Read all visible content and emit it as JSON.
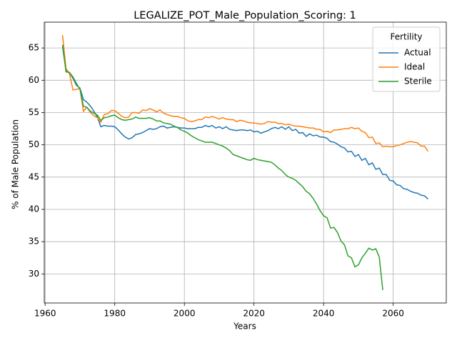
{
  "chart_data": {
    "type": "line",
    "title": "LEGALIZE_POT_Male_Population_Scoring: 1",
    "x_label": "Years",
    "y_label": "% of Male Population",
    "legend_title": "Fertility",
    "legend": "upper right",
    "grid": true,
    "xlim": [
      1959.75,
      2075.25
    ],
    "xticks": [
      1960,
      1980,
      2000,
      2020,
      2040,
      2060
    ],
    "ylim": [
      25.5,
      69
    ],
    "yticks": [
      30,
      35,
      40,
      45,
      50,
      55,
      60,
      65
    ],
    "x": [
      1965,
      1966,
      1967,
      1968,
      1969,
      1970,
      1971,
      1972,
      1973,
      1974,
      1975,
      1976,
      1977,
      1978,
      1979,
      1980,
      1981,
      1982,
      1983,
      1984,
      1985,
      1986,
      1987,
      1988,
      1989,
      1990,
      1991,
      1992,
      1993,
      1994,
      1995,
      1996,
      1997,
      1998,
      1999,
      2000,
      2001,
      2002,
      2003,
      2004,
      2005,
      2006,
      2007,
      2008,
      2009,
      2010,
      2011,
      2012,
      2013,
      2014,
      2015,
      2016,
      2017,
      2018,
      2019,
      2020,
      2021,
      2022,
      2023,
      2024,
      2025,
      2026,
      2027,
      2028,
      2029,
      2030,
      2031,
      2032,
      2033,
      2034,
      2035,
      2036,
      2037,
      2038,
      2039,
      2040,
      2041,
      2042,
      2043,
      2044,
      2045,
      2046,
      2047,
      2048,
      2049,
      2050,
      2051,
      2052,
      2053,
      2054,
      2055,
      2056,
      2057,
      2058,
      2059,
      2060,
      2061,
      2062,
      2063,
      2064,
      2065,
      2066,
      2067,
      2068,
      2069,
      2070
    ],
    "series": [
      {
        "name": "Actual",
        "color": "#1f77b4",
        "values": [
          65.2,
          61.5,
          61.2,
          60.3,
          59.2,
          58.8,
          57.0,
          56.6,
          56.0,
          55.2,
          54.3,
          52.8,
          53.0,
          52.9,
          52.9,
          52.8,
          52.3,
          51.7,
          51.2,
          50.9,
          51.1,
          51.6,
          51.7,
          51.9,
          52.2,
          52.5,
          52.4,
          52.5,
          52.8,
          52.9,
          52.6,
          52.7,
          52.8,
          52.7,
          52.6,
          52.6,
          52.5,
          52.5,
          52.5,
          52.7,
          52.7,
          53.0,
          52.8,
          53.0,
          52.6,
          52.8,
          52.5,
          52.8,
          52.4,
          52.3,
          52.2,
          52.3,
          52.3,
          52.2,
          52.3,
          52.0,
          52.1,
          51.8,
          52.0,
          52.2,
          52.5,
          52.7,
          52.5,
          52.8,
          52.4,
          52.8,
          52.2,
          52.4,
          51.8,
          51.9,
          51.3,
          51.7,
          51.4,
          51.5,
          51.2,
          51.2,
          51.0,
          50.5,
          50.4,
          50.1,
          49.7,
          49.5,
          48.9,
          49.0,
          48.2,
          48.5,
          47.6,
          47.9,
          46.9,
          47.2,
          46.2,
          46.4,
          45.4,
          45.4,
          44.5,
          44.4,
          43.8,
          43.7,
          43.2,
          43.1,
          42.8,
          42.6,
          42.5,
          42.2,
          42.1,
          41.6
        ]
      },
      {
        "name": "Ideal",
        "color": "#ff7f0e",
        "values": [
          67.0,
          61.8,
          61.0,
          58.5,
          58.6,
          58.7,
          55.2,
          55.8,
          55.0,
          54.5,
          54.2,
          53.5,
          54.7,
          54.8,
          55.3,
          55.3,
          54.9,
          54.4,
          54.2,
          54.3,
          55.0,
          55.0,
          54.9,
          55.4,
          55.3,
          55.6,
          55.4,
          55.1,
          55.4,
          54.9,
          54.7,
          54.5,
          54.4,
          54.4,
          54.2,
          54.1,
          53.7,
          53.6,
          53.7,
          53.9,
          53.9,
          54.3,
          54.2,
          54.4,
          54.2,
          54.0,
          54.2,
          54.0,
          53.9,
          53.9,
          53.6,
          53.8,
          53.7,
          53.5,
          53.4,
          53.4,
          53.3,
          53.2,
          53.3,
          53.6,
          53.5,
          53.5,
          53.3,
          53.3,
          53.1,
          53.2,
          53.0,
          52.9,
          52.9,
          52.8,
          52.7,
          52.6,
          52.6,
          52.4,
          52.4,
          52.0,
          52.1,
          51.9,
          52.3,
          52.3,
          52.4,
          52.5,
          52.5,
          52.7,
          52.5,
          52.6,
          52.1,
          51.9,
          51.1,
          51.2,
          50.2,
          50.3,
          49.7,
          49.8,
          49.7,
          49.7,
          49.9,
          50.0,
          50.2,
          50.4,
          50.5,
          50.4,
          50.3,
          49.8,
          49.8,
          49.0
        ]
      },
      {
        "name": "Sterile",
        "color": "#2ca02c",
        "values": [
          65.5,
          61.3,
          61.2,
          60.5,
          59.5,
          58.6,
          56.0,
          55.8,
          55.2,
          54.9,
          54.6,
          53.8,
          54.2,
          54.3,
          54.5,
          54.6,
          54.2,
          53.9,
          53.8,
          53.9,
          54.0,
          54.3,
          54.1,
          54.1,
          54.1,
          54.2,
          54.0,
          53.7,
          53.7,
          53.4,
          53.3,
          53.2,
          52.9,
          52.7,
          52.3,
          52.1,
          51.8,
          51.4,
          51.1,
          50.8,
          50.6,
          50.4,
          50.4,
          50.4,
          50.2,
          50.0,
          49.8,
          49.5,
          49.1,
          48.5,
          48.3,
          48.1,
          47.9,
          47.7,
          47.6,
          47.9,
          47.7,
          47.6,
          47.5,
          47.4,
          47.3,
          46.9,
          46.4,
          46.0,
          45.4,
          45.0,
          44.8,
          44.5,
          44.0,
          43.5,
          42.8,
          42.4,
          41.7,
          40.8,
          39.8,
          39.0,
          38.7,
          37.1,
          37.2,
          36.4,
          35.1,
          34.5,
          32.8,
          32.5,
          31.1,
          31.4,
          32.5,
          33.2,
          34.0,
          33.7,
          33.9,
          32.6,
          27.5,
          null,
          null,
          null,
          null,
          null,
          null,
          null,
          null,
          null,
          null,
          null,
          null,
          null
        ]
      }
    ]
  }
}
